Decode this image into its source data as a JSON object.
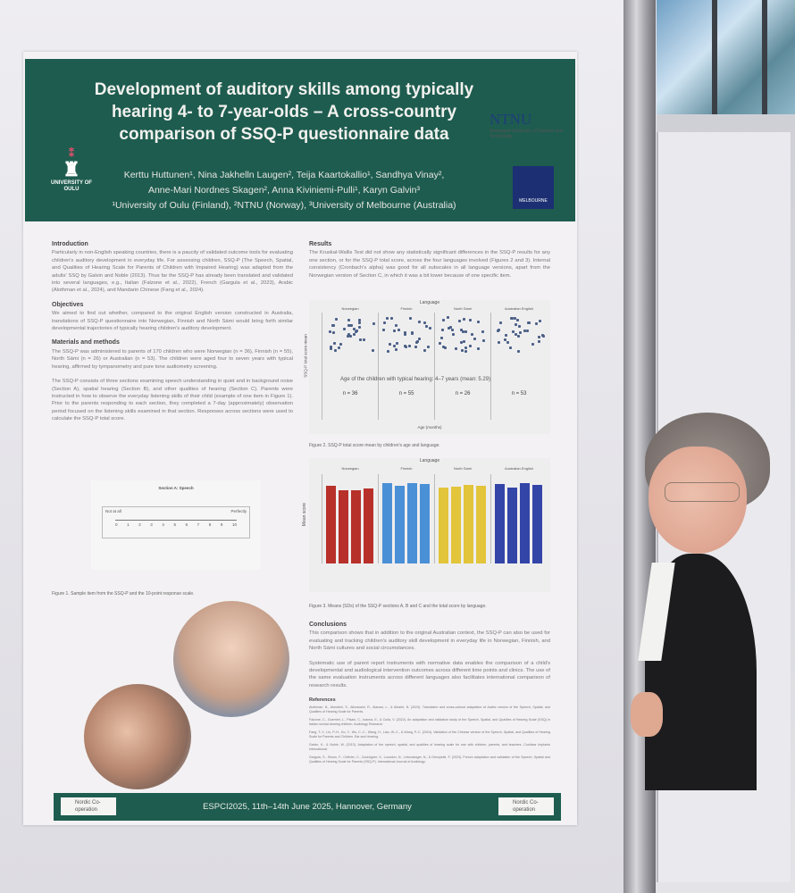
{
  "poster": {
    "title": "Development of auditory skills among typically hearing 4- to 7-year-olds – A cross-country comparison of SSQ-P questionnaire data",
    "authors_line1": "Kerttu Huttunen¹, Nina Jakhelln Laugen², Teija Kaartokallio¹, Sandhya Vinay²,",
    "authors_line2": "Anne-Mari Nordnes Skagen², Anna Kiviniemi-Pulli¹, Karyn Galvin³",
    "affiliations": "¹University of Oulu (Finland), ²NTNU (Norway), ³University of Melbourne (Australia)",
    "logos": {
      "oulu": "UNIVERSITY OF OULU",
      "ntnu": "NTNU",
      "ntnu_sub": "Norwegian University of Science and Technology",
      "melbourne": "MELBOURNE"
    },
    "introduction": {
      "heading": "Introduction",
      "text": "Particularly in non-English speaking countries, there is a paucity of validated outcome tools for evaluating children's auditory development in everyday life. For assessing children, SSQ-P (The Speech, Spatial, and Qualities of Hearing Scale for Parents of Children with Impaired Hearing) was adapted from the adults' SSQ by Galvin and Noble (2013). Thus far the SSQ-P has already been translated and validated into several languages, e.g., Italian (Falzone et al., 2022), French (Gargula et al., 2023), Arabic (Alothman et al., 2024), and Mandarin Chinese (Fang et al., 2024)."
    },
    "objectives": {
      "heading": "Objectives",
      "text": "We aimed to find out whether, compared to the original English version constructed in Australia, translations of SSQ-P questionnaire into Norwegian, Finnish and North Sámi would bring forth similar developmental trajectories of typically hearing children's auditory development."
    },
    "methods": {
      "heading": "Materials and methods",
      "text1": "The SSQ-P was administered to parents of 170 children who were Norwegian (n = 36), Finnish (n = 55), North Sámi (n = 26) or Australian (n = 53). The children were aged four to seven years with typical hearing, affirmed by tympanometry and pure tone audiometry screening.",
      "text2": "The SSQ-P consists of three sections examining speech understanding in quiet and in background noise (Section A), spatial hearing (Section B), and other qualities of hearing (Section C). Parents were instructed in how to observe the everyday listening skills of their child (example of one item in Figure 1). Prior to the parents responding to each section, they completed a 7-day (approximately) observation period focused on the listening skills examined in that section. Responses across sections were used to calculate the SSQ-P total score."
    },
    "figure1": {
      "title": "Section A: Speech",
      "scale": [
        "0",
        "1",
        "2",
        "3",
        "4",
        "5",
        "6",
        "7",
        "8",
        "9",
        "10"
      ],
      "left_label": "Not at all",
      "right_label": "Perfectly",
      "caption": "Figure 1. Sample item from the SSQ-P and the 10-point response scale."
    },
    "results": {
      "heading": "Results",
      "text": "The Kruskal-Wallis Test did not show any statistically significant differences in the SSQ-P results for any one section, or for the SSQ-P total score, across the four languages involved (Figures 2 and 3). Internal consistency (Cronbach's alpha) was good for all subscales in all language versions, apart from the Norwegian version of Section C, in which it was a bit lower because of one specific item."
    },
    "figure2": {
      "top_label": "Language",
      "languages": [
        "Norwegian",
        "Finnish",
        "North Sámi",
        "Australian English"
      ],
      "n_labels": [
        "n = 36",
        "n = 55",
        "n = 26",
        "n = 53"
      ],
      "annotation": "Age of the children with typical hearing: 4–7 years (mean: 5.29)",
      "xlabel": "Age (months)",
      "ylabel": "SSQ-P total score mean",
      "caption": "Figure 2. SSQ-P total score mean by children's age and language."
    },
    "figure3": {
      "top_label": "Language",
      "languages": [
        "Norwegian",
        "Finnish",
        "North Sámi",
        "Australian English"
      ],
      "colors": [
        "#b8302a",
        "#4a90d6",
        "#e2c53a",
        "#3445a8"
      ],
      "ylabel": "Mean score",
      "ylim": [
        0,
        10
      ],
      "values": [
        [
          8.7,
          8.2,
          8.2,
          8.4
        ],
        [
          9.0,
          8.7,
          9.0,
          8.9
        ],
        [
          8.5,
          8.6,
          8.8,
          8.7
        ],
        [
          8.9,
          8.5,
          9.0,
          8.8
        ]
      ],
      "caption": "Figure 3. Means (SDs) of the SSQ-P sections A, B and C and the total score by language."
    },
    "conclusions": {
      "heading": "Conclusions",
      "text1": "This comparison shows that in addition to the original Australian context, the SSQ-P can also be used for evaluating and tracking children's auditory skill development in everyday life in Norwegian, Finnish, and North Sámi cultures and social circumstances.",
      "text2": "Systematic use of parent report instruments with normative data enables the comparison of a child's developmental and audiological intervention outcomes across different time points and clinics. The use of the same evaluation instruments across different languages also facilitates international comparison of research results."
    },
    "references": {
      "heading": "References",
      "items": [
        "Alothman, N., Almoteiri, S., Alhussaini, R., Alanazi, L., & Alharbi, N. (2024). Translation and cross-cultural adaptation of Arabic version of the Speech, Spatial, and Qualities of Hearing Scale for Parents.",
        "Falzone, C., Guerrieri, L., Pisani, C., Ioanna, E., & Cutia, V. (2022). An adaptation and validation study of the Speech, Spatial, and Qualities of Hearing Scale (SSQ) in Italian normal-hearing children. Audiology Research.",
        "Fang, T.-Y., Lin, P.-H., Ko, Y., Wu, C.-C., Wang, H., Liao, W.-C., & Wang, P.-C. (2024). Validation of the Chinese version of the Speech, Spatial, and Qualities of Hearing Scale for Parents and Children. Ear and Hearing.",
        "Galvin, K., & Noble, W. (2013). Adaptation of the speech, spatial, and qualities of hearing scale for use with children, parents, and teachers. Cochlear Implants International.",
        "Gargula, S., Simon, F., Célérier, C., Couloigner, V., Loundon, N., Leboulanger, N., & Denoyelle, F. (2023). French adaptation and validation of the Speech, Spatial and Qualities of Hearing Scale for Parents (SSQ-P). International Journal of Audiology."
      ]
    },
    "footer": {
      "text": "ESPCI2025, 11th–14th June 2025, Hannover, Germany",
      "logo": "Nordic Co-operation"
    }
  }
}
